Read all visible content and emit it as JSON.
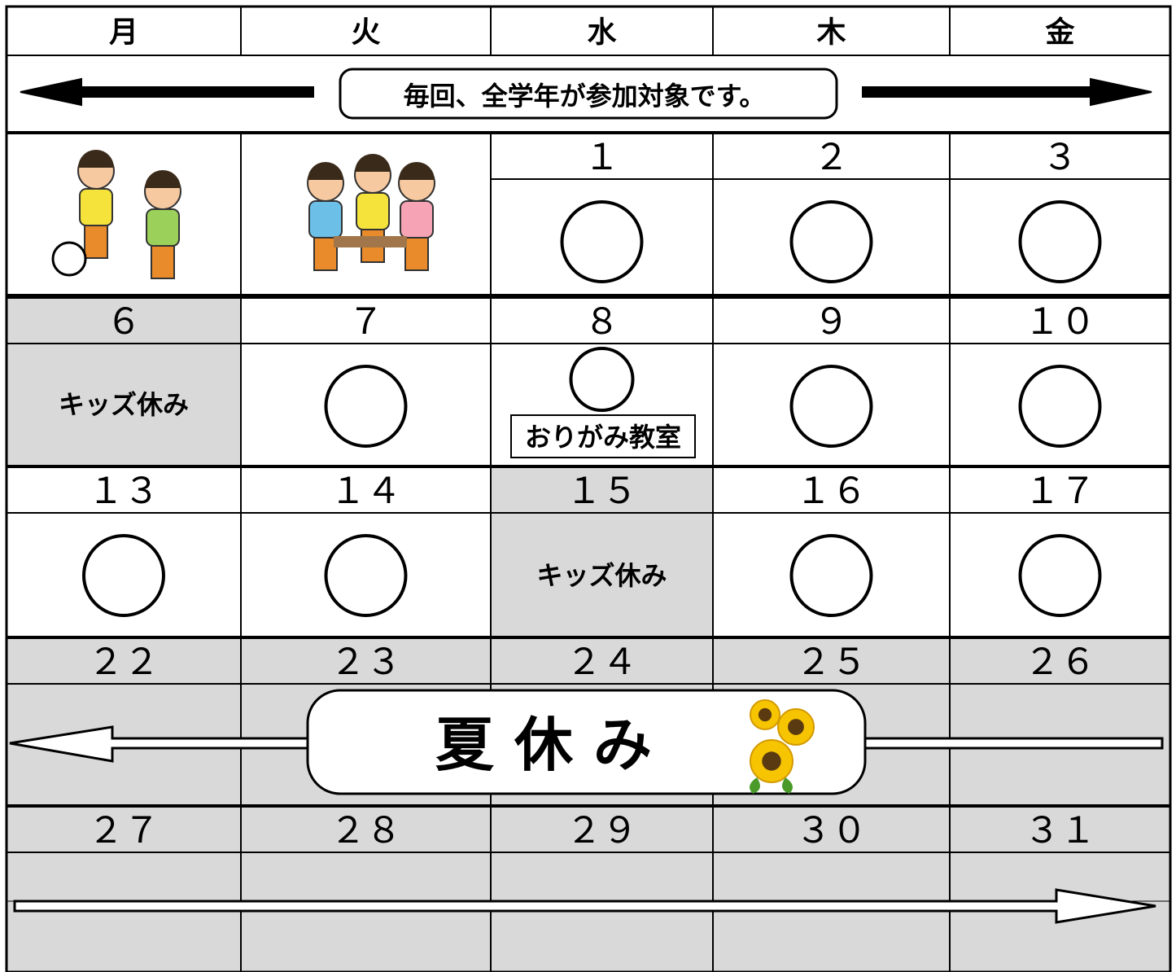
{
  "header": {
    "days": [
      "月",
      "火",
      "水",
      "木",
      "金"
    ],
    "banner": "毎回、全学年が参加対象です。"
  },
  "weeks": [
    {
      "dates": [
        "１",
        "２",
        "３"
      ]
    },
    {
      "dates": [
        "６",
        "７",
        "８",
        "９",
        "１０"
      ],
      "notes": [
        "キッズ休み",
        "おりがみ教室"
      ]
    },
    {
      "dates": [
        "１３",
        "１４",
        "１５",
        "１６",
        "１７"
      ],
      "notes": [
        "キッズ休み"
      ]
    },
    {
      "dates": [
        "２２",
        "２３",
        "２４",
        "２５",
        "２６"
      ],
      "notes": [
        "夏 休 み"
      ]
    },
    {
      "dates": [
        "２７",
        "２８",
        "２９",
        "３０",
        "３１"
      ]
    }
  ]
}
